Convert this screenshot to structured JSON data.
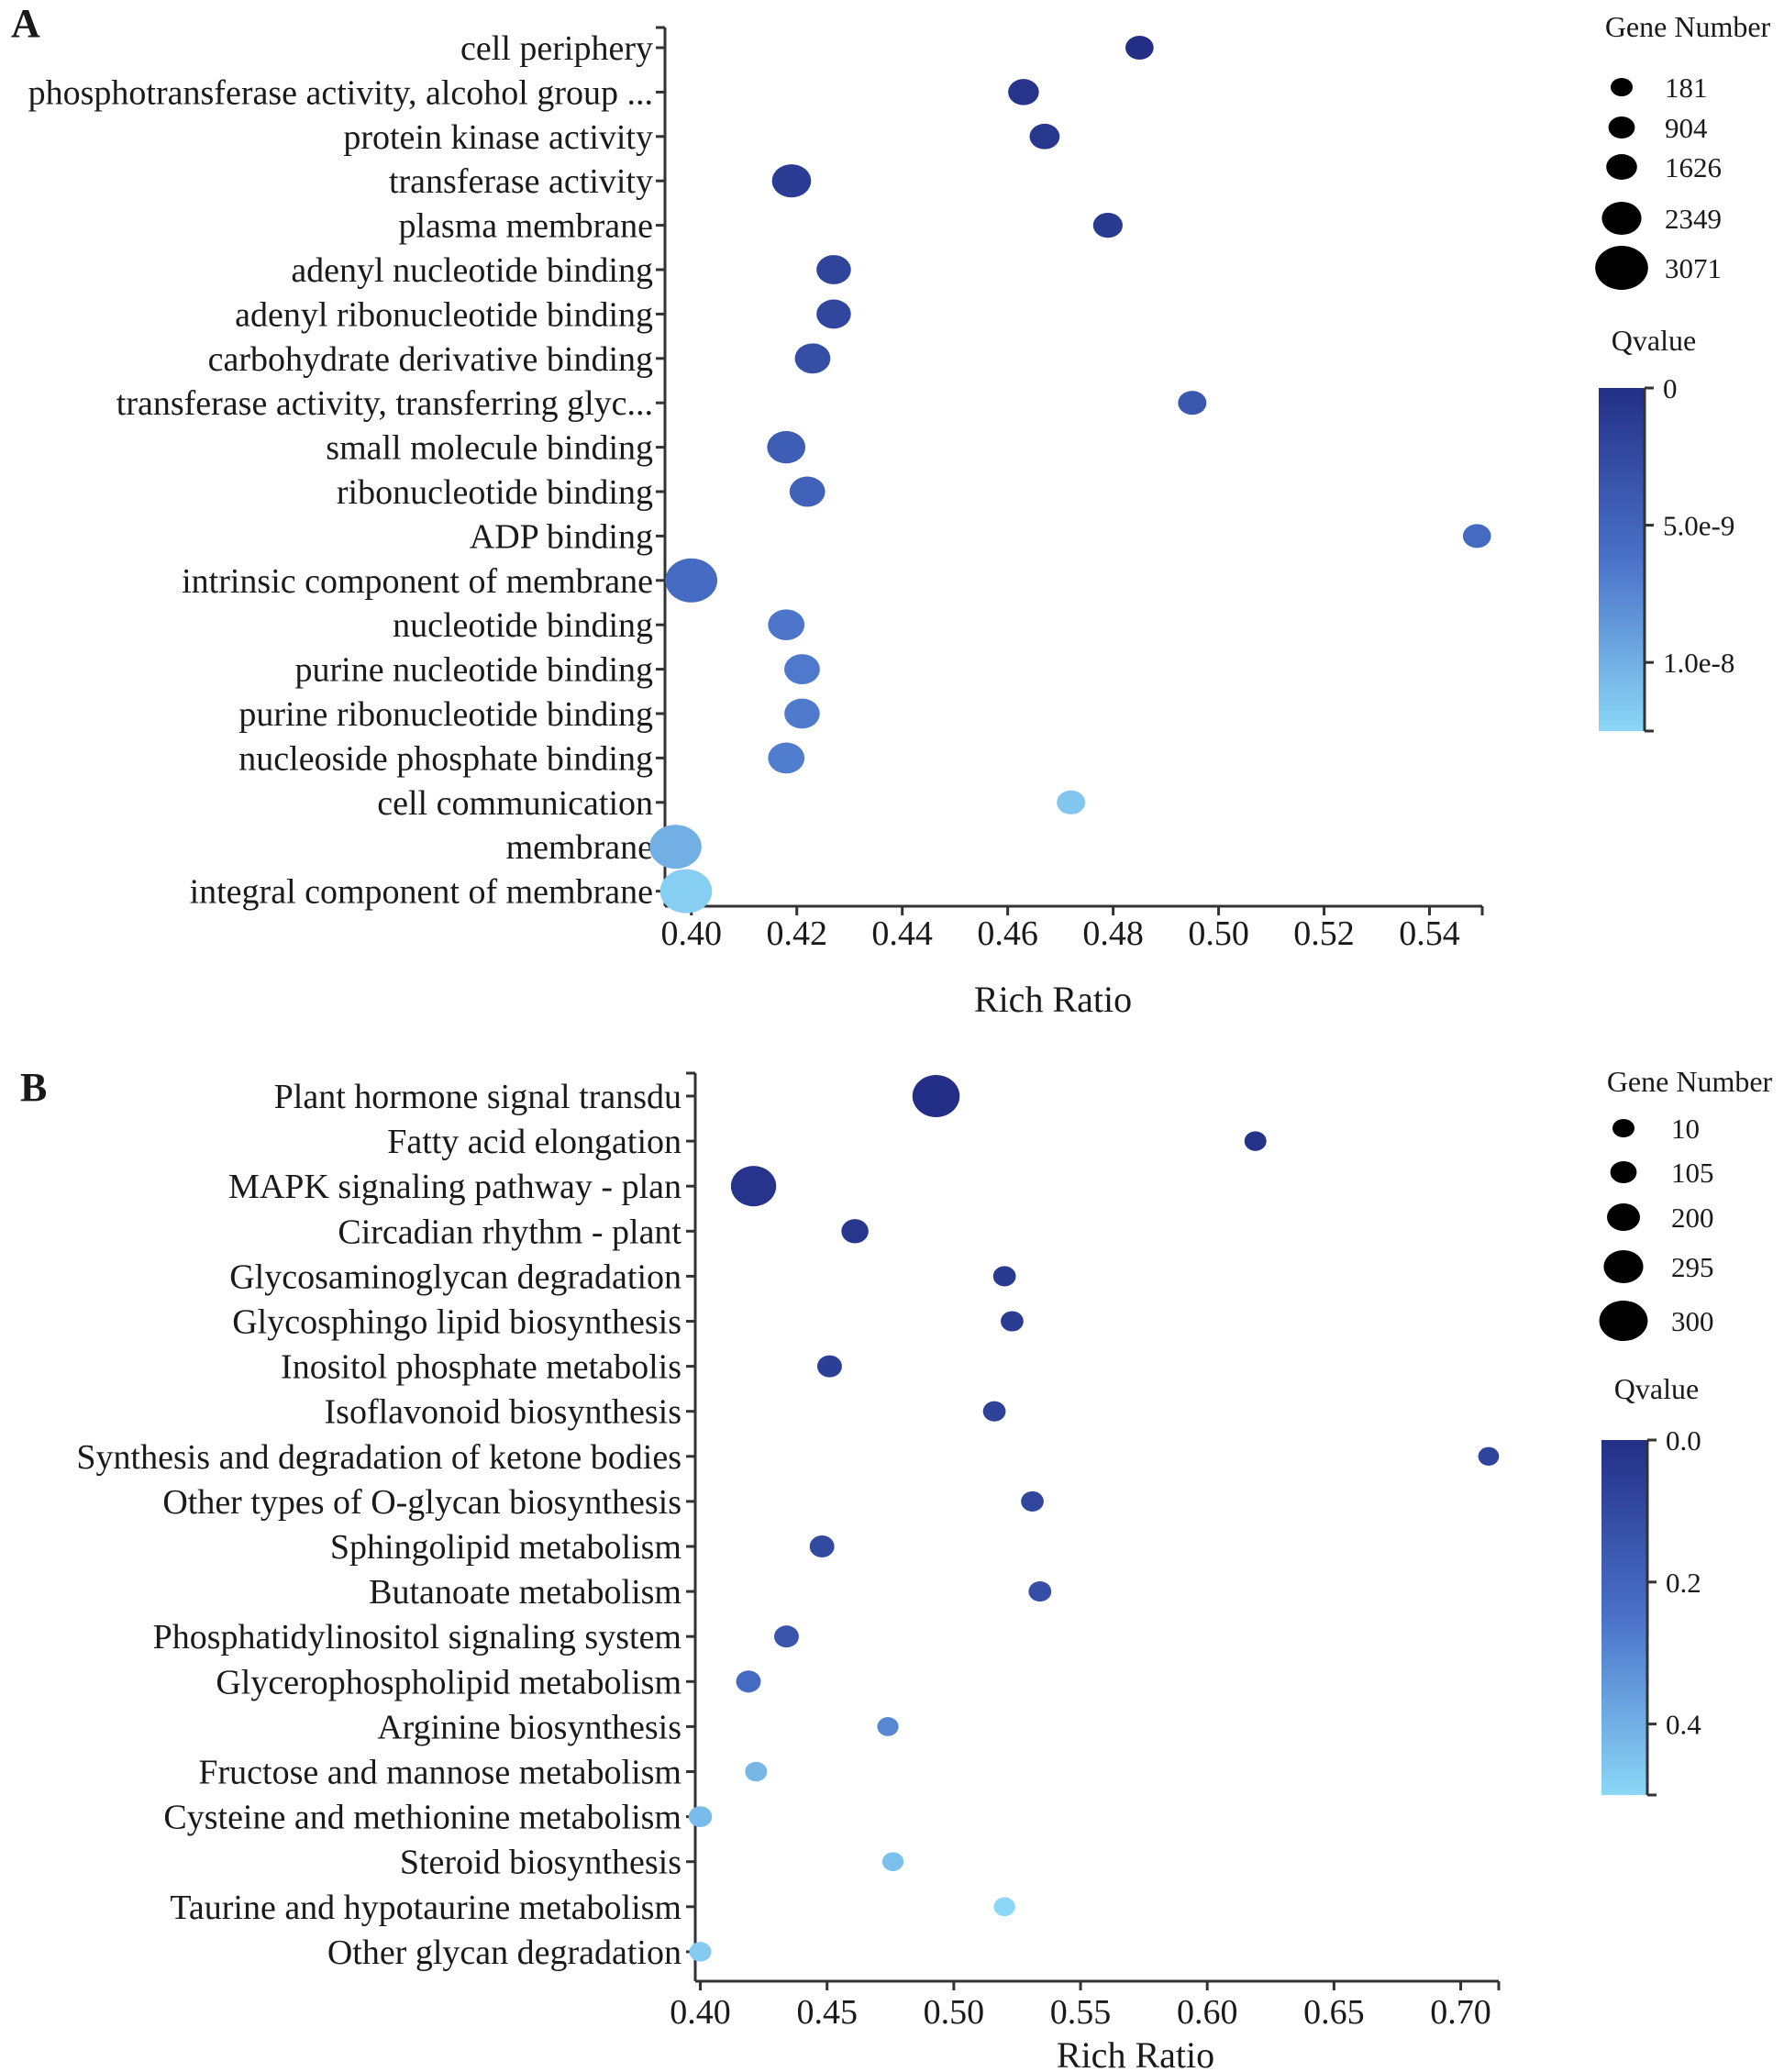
{
  "chart_data": [
    {
      "type": "scatter",
      "panel_label": "A",
      "xlabel": "Rich Ratio",
      "xlim": [
        0.395,
        0.55
      ],
      "xticks": [
        0.4,
        0.42,
        0.44,
        0.46,
        0.48,
        0.5,
        0.52,
        0.54
      ],
      "xtick_labels": [
        "0.40",
        "0.42",
        "0.44",
        "0.46",
        "0.48",
        "0.50",
        "0.52",
        "0.54"
      ],
      "size_legend_title": "Gene Number",
      "size_legend": [
        181,
        904,
        1626,
        2349,
        3071
      ],
      "size_range": [
        181,
        3071
      ],
      "color_legend_title": "Qvalue",
      "color_range": [
        0,
        1.25e-08
      ],
      "color_ticks": [
        0,
        5e-09,
        1e-08
      ],
      "color_tick_labels": [
        "0",
        "5.0e-9",
        "1.0e-8"
      ],
      "colors": {
        "low": "#232f86",
        "mid": "#4a72c9",
        "high": "#8bd7f7"
      },
      "points": [
        {
          "term": "cell periphery",
          "x": 0.485,
          "size": 181,
          "q": 0.0
        },
        {
          "term": "phosphotransferase activity, alcohol group ...",
          "x": 0.463,
          "size": 420,
          "q": 5e-10
        },
        {
          "term": "protein kinase activity",
          "x": 0.467,
          "size": 350,
          "q": 8e-10
        },
        {
          "term": "transferase activity",
          "x": 0.419,
          "size": 1300,
          "q": 1.2e-09
        },
        {
          "term": "plasma membrane",
          "x": 0.479,
          "size": 300,
          "q": 1e-09
        },
        {
          "term": "adenyl nucleotide binding",
          "x": 0.427,
          "size": 780,
          "q": 2e-09
        },
        {
          "term": "adenyl ribonucleotide binding",
          "x": 0.427,
          "size": 780,
          "q": 2.2e-09
        },
        {
          "term": "carbohydrate derivative binding",
          "x": 0.423,
          "size": 900,
          "q": 3e-09
        },
        {
          "term": "transferase activity, transferring glyc...",
          "x": 0.495,
          "size": 200,
          "q": 3.8e-09
        },
        {
          "term": "small molecule binding",
          "x": 0.418,
          "size": 1200,
          "q": 4.3e-09
        },
        {
          "term": "ribonucleotide binding",
          "x": 0.422,
          "size": 900,
          "q": 4.8e-09
        },
        {
          "term": "ADP binding",
          "x": 0.549,
          "size": 181,
          "q": 5.5e-09
        },
        {
          "term": "intrinsic component of membrane",
          "x": 0.4,
          "size": 3071,
          "q": 5.6e-09
        },
        {
          "term": "nucleotide binding",
          "x": 0.418,
          "size": 1000,
          "q": 6.5e-09
        },
        {
          "term": "purine nucleotide binding",
          "x": 0.421,
          "size": 900,
          "q": 6.7e-09
        },
        {
          "term": "purine ribonucleotide binding",
          "x": 0.421,
          "size": 880,
          "q": 6.8e-09
        },
        {
          "term": "nucleoside phosphate binding",
          "x": 0.418,
          "size": 1000,
          "q": 6.9e-09
        },
        {
          "term": "cell communication",
          "x": 0.472,
          "size": 200,
          "q": 1.15e-08
        },
        {
          "term": "membrane",
          "x": 0.397,
          "size": 3071,
          "q": 1e-08
        },
        {
          "term": "integral component of  membrane",
          "x": 0.399,
          "size": 3071,
          "q": 1.2e-08
        }
      ]
    },
    {
      "type": "scatter",
      "panel_label": "B",
      "xlabel": "Rich Ratio",
      "xlim": [
        0.398,
        0.715
      ],
      "xticks": [
        0.4,
        0.45,
        0.5,
        0.55,
        0.6,
        0.65,
        0.7
      ],
      "xtick_labels": [
        "0.40",
        "0.45",
        "0.50",
        "0.55",
        "0.60",
        "0.65",
        "0.70"
      ],
      "size_legend_title": "Gene Number",
      "size_legend": [
        10,
        105,
        200,
        295,
        300
      ],
      "size_range": [
        10,
        300
      ],
      "color_legend_title": "Qvalue",
      "color_range": [
        0,
        0.5
      ],
      "color_ticks": [
        0.0,
        0.2,
        0.4
      ],
      "color_tick_labels": [
        "0.0",
        "0.2",
        "0.4"
      ],
      "colors": {
        "low": "#232f86",
        "mid": "#4a72c9",
        "high": "#8bd7f7"
      },
      "points": [
        {
          "term": "Plant hormone signal transdu",
          "x": 0.493,
          "size": 300,
          "q": 0.0
        },
        {
          "term": "Fatty acid elongation",
          "x": 0.619,
          "size": 20,
          "q": 0.01
        },
        {
          "term": "MAPK signaling pathway - plan",
          "x": 0.421,
          "size": 270,
          "q": 0.02
        },
        {
          "term": "Circadian rhythm - plant",
          "x": 0.461,
          "size": 60,
          "q": 0.03
        },
        {
          "term": "Glycosaminoglycan degradation",
          "x": 0.52,
          "size": 25,
          "q": 0.04
        },
        {
          "term": "Glycosphingo lipid biosynthesis",
          "x": 0.523,
          "size": 25,
          "q": 0.05
        },
        {
          "term": "Inositol phosphate metabolis",
          "x": 0.451,
          "size": 40,
          "q": 0.06
        },
        {
          "term": "Isoflavonoid biosynthesis",
          "x": 0.516,
          "size": 25,
          "q": 0.07
        },
        {
          "term": "Synthesis and degradation of ketone bodies",
          "x": 0.711,
          "size": 12,
          "q": 0.08
        },
        {
          "term": "Other types of O-glycan biosynthesis",
          "x": 0.531,
          "size": 25,
          "q": 0.09
        },
        {
          "term": "Sphingolipid metabolism",
          "x": 0.448,
          "size": 40,
          "q": 0.1
        },
        {
          "term": "Butanoate metabolism",
          "x": 0.534,
          "size": 25,
          "q": 0.12
        },
        {
          "term": "Phosphatidylinositol signaling system",
          "x": 0.434,
          "size": 40,
          "q": 0.14
        },
        {
          "term": "Glycerophospholipid metabolism",
          "x": 0.419,
          "size": 40,
          "q": 0.22
        },
        {
          "term": "Arginine biosynthesis",
          "x": 0.474,
          "size": 15,
          "q": 0.3
        },
        {
          "term": "Fructose and mannose metabolism",
          "x": 0.422,
          "size": 20,
          "q": 0.42
        },
        {
          "term": "Cysteine and methionine metabolism",
          "x": 0.4,
          "size": 30,
          "q": 0.43
        },
        {
          "term": "Steroid biosynthesis",
          "x": 0.476,
          "size": 15,
          "q": 0.44
        },
        {
          "term": "Taurine and hypotaurine metabolism",
          "x": 0.52,
          "size": 15,
          "q": 0.5
        },
        {
          "term": "Other glycan degradation",
          "x": 0.4,
          "size": 20,
          "q": 0.47
        }
      ]
    }
  ]
}
